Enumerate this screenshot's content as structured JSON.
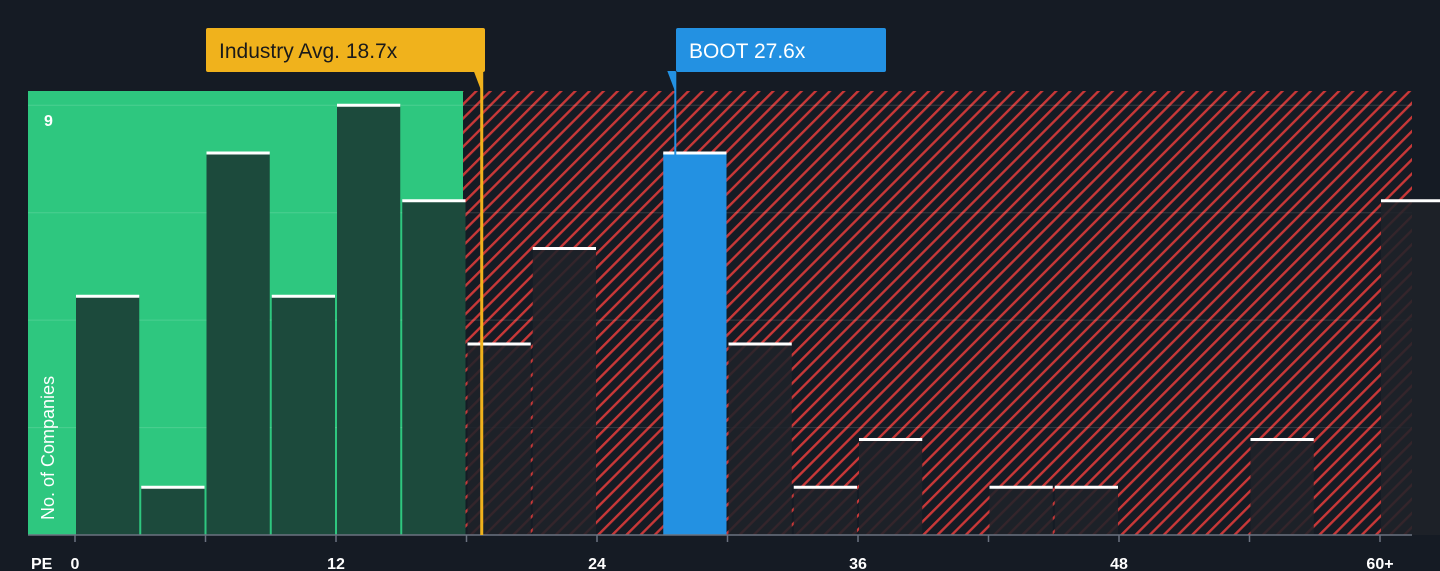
{
  "chart_data": {
    "type": "bar",
    "title": "",
    "xlabel": "PE",
    "ylabel": "No. of Companies",
    "x_tick_labels": [
      "0",
      "12",
      "24",
      "36",
      "48",
      "60+"
    ],
    "x_tick_values": [
      0,
      12,
      24,
      36,
      48,
      60
    ],
    "y_tick_labels": [
      "9"
    ],
    "ylim": [
      0,
      9.3
    ],
    "grid": true,
    "bins": [
      {
        "start": 0,
        "end": 3,
        "count": 5
      },
      {
        "start": 3,
        "end": 6,
        "count": 1
      },
      {
        "start": 6,
        "end": 9,
        "count": 8
      },
      {
        "start": 9,
        "end": 12,
        "count": 5
      },
      {
        "start": 12,
        "end": 15,
        "count": 9
      },
      {
        "start": 15,
        "end": 18,
        "count": 7
      },
      {
        "start": 18,
        "end": 21,
        "count": 4
      },
      {
        "start": 21,
        "end": 24,
        "count": 6
      },
      {
        "start": 27,
        "end": 30,
        "count": 8,
        "highlight": true
      },
      {
        "start": 30,
        "end": 33,
        "count": 4
      },
      {
        "start": 33,
        "end": 36,
        "count": 1
      },
      {
        "start": 36,
        "end": 39,
        "count": 2
      },
      {
        "start": 42,
        "end": 45,
        "count": 1
      },
      {
        "start": 45,
        "end": 48,
        "count": 1
      },
      {
        "start": 54,
        "end": 57,
        "count": 2
      },
      {
        "start": 60,
        "end": 63,
        "count": 7
      }
    ],
    "fair_zone_end": 17.9,
    "annotations": [
      {
        "label": "Industry Avg. 18.7x",
        "value": 18.7
      },
      {
        "label": "BOOT 27.6x",
        "value": 27.6
      }
    ]
  },
  "colors": {
    "background": "#151b24",
    "green_zone": "#2ec77f",
    "green_bar": "#1c4a3c",
    "red_hatch": "#e03c3c",
    "dark_bar": "#1f2229",
    "highlight_bar": "#2391e2",
    "industry_callout": "#f0b21c",
    "company_callout": "#2391e2",
    "bar_top": "#ffffff"
  }
}
